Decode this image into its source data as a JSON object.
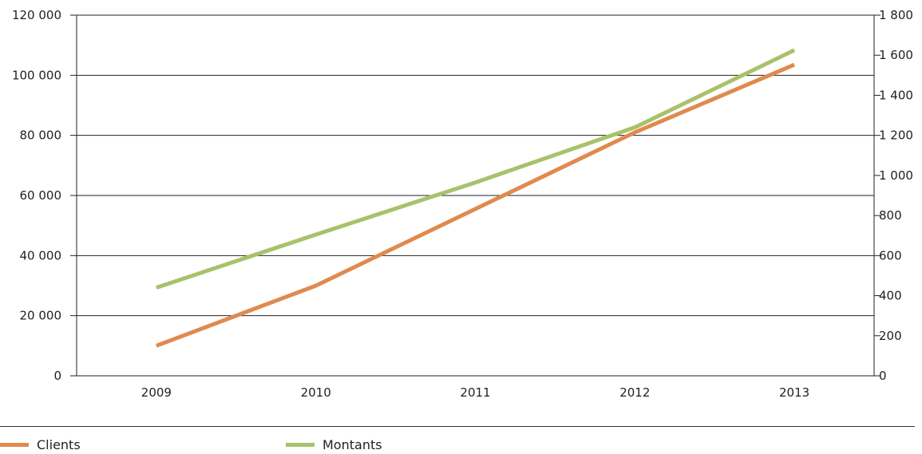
{
  "chart_data": {
    "type": "line",
    "categories": [
      "2009",
      "2010",
      "2011",
      "2012",
      "2013"
    ],
    "y_left": {
      "ylim": [
        0,
        120000
      ],
      "ticks": [
        0,
        20000,
        40000,
        60000,
        80000,
        100000,
        120000
      ],
      "tick_labels": [
        "0",
        "20 000",
        "40 000",
        "60 000",
        "80 000",
        "100 000",
        "120 000"
      ]
    },
    "y_right": {
      "ylim": [
        0,
        1800
      ],
      "ticks": [
        0,
        200,
        400,
        600,
        800,
        1000,
        1200,
        1400,
        1600,
        1800
      ],
      "tick_labels": [
        "0",
        "200",
        "400",
        "600",
        "800",
        "1 000",
        "1 200",
        "1 400",
        "1 600",
        "1 800"
      ]
    },
    "series": [
      {
        "name": "Clients",
        "axis": "left",
        "color": "#e08a4f",
        "values": [
          10000,
          30000,
          55500,
          81000,
          103500
        ]
      },
      {
        "name": "Montants",
        "axis": "right",
        "color": "#a8c26a",
        "values": [
          440,
          705,
          965,
          1240,
          1625
        ]
      }
    ],
    "grid": true,
    "legend": "bottom-left"
  }
}
